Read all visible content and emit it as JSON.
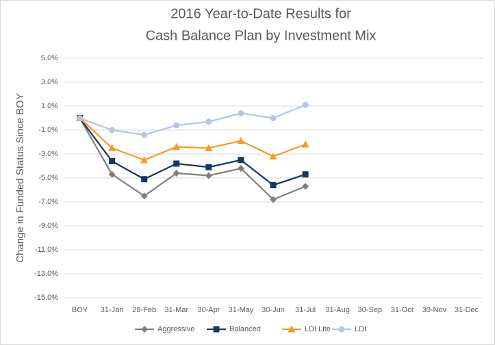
{
  "chart_data": {
    "type": "line",
    "title": [
      "2016 Year-to-Date Results for",
      "Cash Balance Plan by Investment Mix"
    ],
    "y_label": "Change in Funded Status Since BOY",
    "categories": [
      "BOY",
      "31-Jan",
      "28-Feb",
      "31-Mar",
      "30-Apr",
      "31-May",
      "30-Jun",
      "31-Jul",
      "31-Aug",
      "30-Sep",
      "31-Oct",
      "30-Nov",
      "31-Dec"
    ],
    "series": [
      {
        "name": "Aggressive",
        "color": "#7f7f7f",
        "marker": "diamond",
        "values": [
          0,
          -4.7,
          -6.5,
          -4.6,
          -4.8,
          -4.2,
          -6.8,
          -5.7,
          null,
          null,
          null,
          null,
          null
        ]
      },
      {
        "name": "Balanced",
        "color": "#17375e",
        "marker": "square",
        "values": [
          0,
          -3.6,
          -5.1,
          -3.8,
          -4.1,
          -3.5,
          -5.6,
          -4.7,
          null,
          null,
          null,
          null,
          null
        ]
      },
      {
        "name": "LDI Lite",
        "color": "#f39c25",
        "marker": "triangle",
        "values": [
          0,
          -2.5,
          -3.5,
          -2.4,
          -2.5,
          -1.9,
          -3.2,
          -2.2,
          null,
          null,
          null,
          null,
          null
        ]
      },
      {
        "name": "LDI",
        "color": "#b4c6e7",
        "marker": "circle",
        "values": [
          0,
          -1.0,
          -1.4,
          -0.6,
          -0.3,
          0.4,
          0,
          1.1,
          null,
          null,
          null,
          null,
          null
        ]
      }
    ],
    "ylim": [
      -15,
      5
    ],
    "yticks": [
      {
        "value": 5,
        "label": "5.0%"
      },
      {
        "value": 3,
        "label": "3.0%"
      },
      {
        "value": 1,
        "label": "1.0%"
      },
      {
        "value": -1,
        "label": "-1.0%"
      },
      {
        "value": -3,
        "label": "-3.0%"
      },
      {
        "value": -5,
        "label": "-5.0%"
      },
      {
        "value": -7,
        "label": "-7.0%"
      },
      {
        "value": -9,
        "label": "-9.0%"
      },
      {
        "value": -11,
        "label": "-11.0%"
      },
      {
        "value": -13,
        "label": "-13.0%"
      },
      {
        "value": -15,
        "label": "-15.0%"
      }
    ],
    "grid": true,
    "legend": "bottom"
  }
}
